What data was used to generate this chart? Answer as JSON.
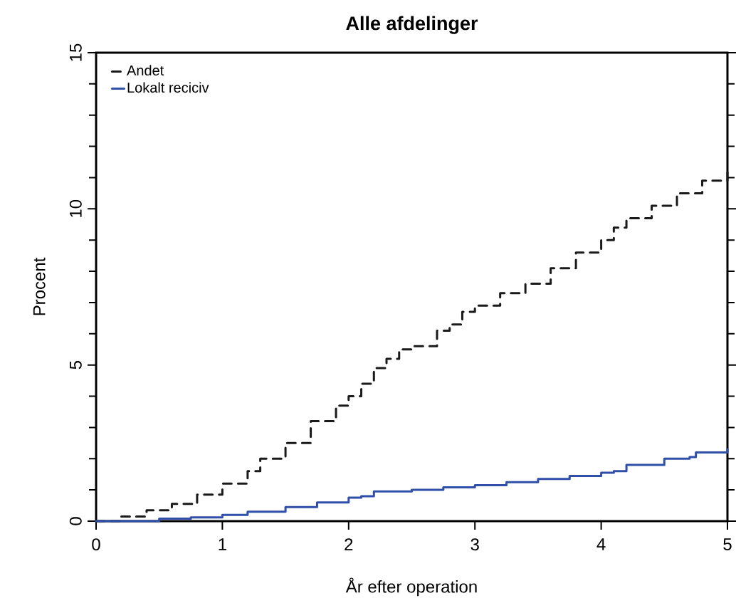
{
  "chart_data": {
    "type": "step",
    "title": "Alle afdelinger",
    "xlabel": "År efter operation",
    "ylabel": "Procent",
    "xlim": [
      0,
      5
    ],
    "xticks": [
      0,
      1,
      2,
      3,
      4,
      5
    ],
    "ylim": [
      0,
      15
    ],
    "yticks": [
      0,
      {
        "value": 1,
        "label": null
      },
      {
        "value": 2,
        "label": null
      },
      {
        "value": 3,
        "label": null
      },
      {
        "value": 4,
        "label": null
      },
      5,
      {
        "value": 6,
        "label": null
      },
      {
        "value": 7,
        "label": null
      },
      {
        "value": 8,
        "label": null
      },
      {
        "value": 9,
        "label": null
      },
      10,
      {
        "value": 11,
        "label": null
      },
      {
        "value": 12,
        "label": null
      },
      {
        "value": 13,
        "label": null
      },
      {
        "value": 14,
        "label": null
      },
      15
    ],
    "grid": false,
    "legend": "top left",
    "series": [
      {
        "name": "Andet",
        "color": "#1a1a1a",
        "line_style": "dashed",
        "x": [
          0,
          0.2,
          0.4,
          0.6,
          0.8,
          1.0,
          1.2,
          1.3,
          1.5,
          1.7,
          1.9,
          2.0,
          2.1,
          2.2,
          2.3,
          2.4,
          2.5,
          2.7,
          2.8,
          2.9,
          3.0,
          3.2,
          3.4,
          3.6,
          3.8,
          4.0,
          4.1,
          4.2,
          4.4,
          4.6,
          4.8,
          5.0
        ],
        "values": [
          0,
          0.15,
          0.35,
          0.55,
          0.85,
          1.2,
          1.6,
          2.0,
          2.5,
          3.2,
          3.7,
          4.0,
          4.4,
          4.9,
          5.2,
          5.5,
          5.6,
          6.1,
          6.3,
          6.7,
          6.9,
          7.3,
          7.6,
          8.1,
          8.6,
          9.0,
          9.4,
          9.7,
          10.1,
          10.5,
          10.9,
          11.2
        ]
      },
      {
        "name": "Lokalt reciciv",
        "color": "#2f4fa8",
        "line_style": "solid",
        "x": [
          0,
          0.3,
          0.5,
          0.75,
          1.0,
          1.2,
          1.5,
          1.75,
          2.0,
          2.1,
          2.2,
          2.5,
          2.75,
          3.0,
          3.25,
          3.5,
          3.75,
          4.0,
          4.1,
          4.2,
          4.5,
          4.7,
          4.75,
          5.0
        ],
        "values": [
          0,
          0,
          0.08,
          0.12,
          0.2,
          0.3,
          0.45,
          0.6,
          0.75,
          0.8,
          0.95,
          1.0,
          1.08,
          1.15,
          1.25,
          1.35,
          1.45,
          1.55,
          1.6,
          1.8,
          2.0,
          2.05,
          2.2,
          2.3
        ]
      }
    ]
  }
}
